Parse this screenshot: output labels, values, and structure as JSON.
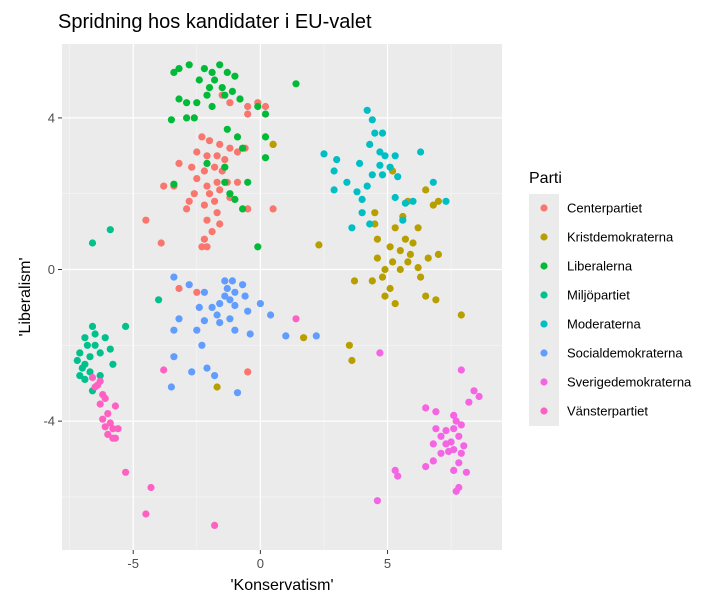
{
  "chart_data": {
    "type": "scatter",
    "title": "Spridning hos kandidater i EU-valet",
    "xlabel": "'Konservatism'",
    "ylabel": "'Liberalism'",
    "xlim": [
      -7.8,
      9.5
    ],
    "ylim": [
      -7.4,
      5.95
    ],
    "x_ticks": [
      -5,
      0,
      5
    ],
    "x_tick_labels": [
      "-5",
      "0",
      "5"
    ],
    "y_ticks": [
      -4,
      0,
      4
    ],
    "y_tick_labels": [
      "-4",
      "0",
      "4"
    ],
    "grid": true,
    "legend_placement": "right",
    "legend_title": "Parti",
    "series": [
      {
        "name": "Centerpartiet",
        "color": "#F8766D",
        "points": [
          [
            -1.5,
            4.6
          ],
          [
            -1.2,
            4.4
          ],
          [
            -0.8,
            4.5
          ],
          [
            -0.5,
            4.3
          ],
          [
            -0.1,
            4.4
          ],
          [
            0.2,
            4.3
          ],
          [
            -0.5,
            4.1
          ],
          [
            -2.3,
            3.5
          ],
          [
            -2.0,
            3.4
          ],
          [
            -1.6,
            3.3
          ],
          [
            -2.5,
            3.1
          ],
          [
            -2.1,
            3.0
          ],
          [
            -1.7,
            3.0
          ],
          [
            -1.4,
            2.9
          ],
          [
            -1.2,
            3.2
          ],
          [
            -0.9,
            3.1
          ],
          [
            -0.6,
            3.2
          ],
          [
            0.5,
            3.3
          ],
          [
            -3.2,
            2.8
          ],
          [
            -2.7,
            2.7
          ],
          [
            -2.2,
            2.6
          ],
          [
            -1.8,
            2.7
          ],
          [
            -1.5,
            2.6
          ],
          [
            -2.5,
            2.4
          ],
          [
            -2.1,
            2.2
          ],
          [
            -1.7,
            2.3
          ],
          [
            -1.3,
            2.3
          ],
          [
            -0.9,
            2.3
          ],
          [
            -3.8,
            2.2
          ],
          [
            -3.4,
            2.2
          ],
          [
            -2.6,
            2.0
          ],
          [
            -2.0,
            2.0
          ],
          [
            -1.6,
            2.1
          ],
          [
            -1.2,
            1.9
          ],
          [
            -2.8,
            1.8
          ],
          [
            -2.2,
            1.7
          ],
          [
            -1.8,
            1.8
          ],
          [
            -2.9,
            1.6
          ],
          [
            -0.5,
            1.6
          ],
          [
            0.5,
            1.6
          ],
          [
            -1.7,
            1.5
          ],
          [
            -2.1,
            1.3
          ],
          [
            -1.6,
            1.2
          ],
          [
            -4.5,
            1.3
          ],
          [
            -1.9,
            1.0
          ],
          [
            -2.2,
            0.8
          ],
          [
            -3.9,
            0.7
          ],
          [
            -2.3,
            0.6
          ],
          [
            -2.1,
            0.6
          ],
          [
            -3.2,
            -0.5
          ],
          [
            -2.5,
            -0.6
          ],
          [
            -0.5,
            -2.7
          ]
        ]
      },
      {
        "name": "Kristdemokraterna",
        "color": "#B79F00",
        "points": [
          [
            0.5,
            3.3
          ],
          [
            5.2,
            2.6
          ],
          [
            6.5,
            2.1
          ],
          [
            7.0,
            1.8
          ],
          [
            4.5,
            1.5
          ],
          [
            5.8,
            1.8
          ],
          [
            6.8,
            1.7
          ],
          [
            5.6,
            1.4
          ],
          [
            4.5,
            1.2
          ],
          [
            5.3,
            1.1
          ],
          [
            6.2,
            1.1
          ],
          [
            4.6,
            0.8
          ],
          [
            5.7,
            0.8
          ],
          [
            6.0,
            0.7
          ],
          [
            2.3,
            0.65
          ],
          [
            5.1,
            0.6
          ],
          [
            5.5,
            0.5
          ],
          [
            5.9,
            0.4
          ],
          [
            7.0,
            0.4
          ],
          [
            4.6,
            0.3
          ],
          [
            5.2,
            0.2
          ],
          [
            5.8,
            0.2
          ],
          [
            6.6,
            0.3
          ],
          [
            4.9,
            0.0
          ],
          [
            5.5,
            0.0
          ],
          [
            6.2,
            0.05
          ],
          [
            4.8,
            -0.2
          ],
          [
            6.3,
            -0.2
          ],
          [
            3.7,
            -0.3
          ],
          [
            4.4,
            -0.3
          ],
          [
            5.1,
            -0.5
          ],
          [
            4.9,
            -0.7
          ],
          [
            6.5,
            -0.7
          ],
          [
            6.9,
            -0.8
          ],
          [
            5.3,
            -0.9
          ],
          [
            7.9,
            -1.2
          ],
          [
            3.5,
            -2.0
          ],
          [
            3.6,
            -2.4
          ],
          [
            1.7,
            -1.8
          ],
          [
            -1.7,
            -3.1
          ]
        ]
      },
      {
        "name": "Liberalerna",
        "color": "#00BA38",
        "points": [
          [
            -3.4,
            5.2
          ],
          [
            -3.2,
            5.3
          ],
          [
            -2.8,
            5.4
          ],
          [
            -2.2,
            5.3
          ],
          [
            -1.9,
            5.2
          ],
          [
            -1.6,
            5.4
          ],
          [
            -1.3,
            5.2
          ],
          [
            -1.0,
            5.1
          ],
          [
            -2.4,
            5.0
          ],
          [
            -1.8,
            5.0
          ],
          [
            -2.0,
            4.8
          ],
          [
            -1.5,
            4.8
          ],
          [
            -1.1,
            4.7
          ],
          [
            -2.1,
            4.6
          ],
          [
            -1.4,
            4.6
          ],
          [
            -0.8,
            4.5
          ],
          [
            1.4,
            4.9
          ],
          [
            -3.2,
            4.5
          ],
          [
            -2.9,
            4.4
          ],
          [
            -2.5,
            4.4
          ],
          [
            -1.9,
            4.3
          ],
          [
            -0.1,
            4.3
          ],
          [
            -2.9,
            4.0
          ],
          [
            -2.6,
            4.0
          ],
          [
            0.2,
            4.1
          ],
          [
            -3.5,
            3.95
          ],
          [
            -1.3,
            3.7
          ],
          [
            -0.9,
            3.5
          ],
          [
            0.2,
            3.5
          ],
          [
            -0.7,
            3.2
          ],
          [
            0.2,
            2.95
          ],
          [
            -2.1,
            2.8
          ],
          [
            -1.4,
            2.7
          ],
          [
            -3.4,
            2.25
          ],
          [
            -1.4,
            2.3
          ],
          [
            -0.5,
            2.3
          ],
          [
            -1.0,
            1.85
          ],
          [
            -0.1,
            0.6
          ],
          [
            -0.7,
            1.6
          ],
          [
            -1.2,
            2.0
          ]
        ]
      },
      {
        "name": "Miljöpartiet",
        "color": "#00C08B",
        "points": [
          [
            -6.6,
            0.7
          ],
          [
            -5.9,
            1.05
          ],
          [
            -4.0,
            -0.8
          ],
          [
            -5.3,
            -1.5
          ],
          [
            -6.6,
            -1.5
          ],
          [
            -6.9,
            -1.8
          ],
          [
            -6.5,
            -1.7
          ],
          [
            -6.8,
            -2.0
          ],
          [
            -6.5,
            -2.0
          ],
          [
            -6.1,
            -1.8
          ],
          [
            -5.9,
            -2.1
          ],
          [
            -7.1,
            -2.2
          ],
          [
            -6.7,
            -2.3
          ],
          [
            -7.2,
            -2.4
          ],
          [
            -6.9,
            -2.5
          ],
          [
            -7.0,
            -2.6
          ],
          [
            -6.7,
            -2.7
          ],
          [
            -7.1,
            -2.8
          ],
          [
            -6.9,
            -2.9
          ],
          [
            -6.3,
            -2.8
          ],
          [
            -5.8,
            -2.5
          ],
          [
            -6.3,
            -2.2
          ],
          [
            -6.6,
            -3.2
          ]
        ]
      },
      {
        "name": "Moderaterna",
        "color": "#00BFC4",
        "points": [
          [
            4.2,
            4.2
          ],
          [
            4.4,
            3.95
          ],
          [
            4.5,
            3.6
          ],
          [
            4.8,
            3.6
          ],
          [
            4.3,
            3.3
          ],
          [
            4.7,
            3.1
          ],
          [
            4.9,
            3.0
          ],
          [
            5.3,
            3.0
          ],
          [
            6.3,
            3.1
          ],
          [
            2.5,
            3.05
          ],
          [
            3.0,
            2.9
          ],
          [
            3.9,
            2.8
          ],
          [
            4.7,
            2.75
          ],
          [
            5.1,
            2.7
          ],
          [
            4.4,
            2.5
          ],
          [
            4.8,
            2.5
          ],
          [
            5.4,
            2.45
          ],
          [
            2.9,
            2.6
          ],
          [
            4.2,
            2.2
          ],
          [
            3.8,
            2.05
          ],
          [
            3.4,
            2.3
          ],
          [
            4.0,
            1.85
          ],
          [
            5.3,
            1.9
          ],
          [
            5.7,
            1.75
          ],
          [
            6.0,
            1.8
          ],
          [
            6.8,
            2.3
          ],
          [
            7.3,
            1.8
          ],
          [
            2.9,
            2.1
          ],
          [
            4.0,
            1.5
          ],
          [
            3.6,
            1.1
          ],
          [
            4.3,
            1.2
          ],
          [
            5.6,
            1.3
          ]
        ]
      },
      {
        "name": "Socialdemokraterna",
        "color": "#619CFF",
        "points": [
          [
            -3.4,
            -0.2
          ],
          [
            -2.8,
            -0.4
          ],
          [
            -1.4,
            -0.3
          ],
          [
            -1.1,
            -0.3
          ],
          [
            -0.7,
            -0.4
          ],
          [
            -2.2,
            -0.6
          ],
          [
            -1.3,
            -0.5
          ],
          [
            -1.0,
            -0.6
          ],
          [
            -1.4,
            -0.7
          ],
          [
            -1.2,
            -0.8
          ],
          [
            -0.6,
            -0.7
          ],
          [
            -1.6,
            -0.9
          ],
          [
            -1.0,
            -0.95
          ],
          [
            0.0,
            -0.9
          ],
          [
            -2.4,
            -1.0
          ],
          [
            -1.9,
            -1.0
          ],
          [
            -0.5,
            -1.1
          ],
          [
            -1.7,
            -1.2
          ],
          [
            -1.2,
            -1.3
          ],
          [
            -2.2,
            -1.35
          ],
          [
            0.4,
            -1.2
          ],
          [
            -3.2,
            -1.3
          ],
          [
            -1.6,
            -1.4
          ],
          [
            -3.4,
            -1.6
          ],
          [
            -2.5,
            -1.6
          ],
          [
            -1.0,
            -1.6
          ],
          [
            -0.4,
            -1.7
          ],
          [
            -2.3,
            -2.0
          ],
          [
            -3.4,
            -2.3
          ],
          [
            -2.1,
            -2.6
          ],
          [
            -2.7,
            -2.7
          ],
          [
            -1.8,
            -2.8
          ],
          [
            -3.5,
            -3.1
          ],
          [
            -0.9,
            -3.25
          ],
          [
            1.0,
            -1.75
          ],
          [
            2.2,
            -1.75
          ]
        ]
      },
      {
        "name": "Sverigedemokraterna",
        "color": "#F564E3",
        "points": [
          [
            4.7,
            -2.2
          ],
          [
            7.9,
            -2.65
          ],
          [
            8.4,
            -3.2
          ],
          [
            8.6,
            -3.35
          ],
          [
            8.2,
            -3.5
          ],
          [
            6.5,
            -3.65
          ],
          [
            6.9,
            -3.75
          ],
          [
            7.6,
            -3.85
          ],
          [
            7.7,
            -4.0
          ],
          [
            7.9,
            -4.1
          ],
          [
            7.6,
            -4.2
          ],
          [
            7.3,
            -4.25
          ],
          [
            6.9,
            -4.2
          ],
          [
            7.1,
            -4.4
          ],
          [
            7.8,
            -4.4
          ],
          [
            7.5,
            -4.55
          ],
          [
            7.3,
            -4.6
          ],
          [
            6.8,
            -4.6
          ],
          [
            8.0,
            -4.65
          ],
          [
            7.6,
            -4.75
          ],
          [
            7.4,
            -4.8
          ],
          [
            7.1,
            -4.85
          ],
          [
            7.9,
            -4.85
          ],
          [
            6.8,
            -5.05
          ],
          [
            7.8,
            -5.1
          ],
          [
            6.5,
            -5.2
          ],
          [
            5.3,
            -5.3
          ],
          [
            5.4,
            -5.45
          ],
          [
            7.6,
            -5.3
          ],
          [
            8.1,
            -5.35
          ],
          [
            7.8,
            -5.75
          ],
          [
            7.7,
            -5.85
          ],
          [
            4.6,
            -6.1
          ]
        ]
      },
      {
        "name": "Vänsterpartiet",
        "color": "#FF61C3",
        "points": [
          [
            1.4,
            -1.3
          ],
          [
            -3.8,
            -2.65
          ],
          [
            -6.6,
            -2.85
          ],
          [
            -6.3,
            -2.95
          ],
          [
            -6.4,
            -3.05
          ],
          [
            -6.5,
            -3.1
          ],
          [
            -6.2,
            -3.3
          ],
          [
            -6.1,
            -3.4
          ],
          [
            -6.3,
            -3.55
          ],
          [
            -5.7,
            -3.6
          ],
          [
            -6.0,
            -3.8
          ],
          [
            -6.2,
            -3.95
          ],
          [
            -5.9,
            -4.05
          ],
          [
            -6.1,
            -4.15
          ],
          [
            -5.8,
            -4.2
          ],
          [
            -5.6,
            -4.2
          ],
          [
            -6.0,
            -4.35
          ],
          [
            -5.7,
            -4.45
          ],
          [
            -5.8,
            -4.45
          ],
          [
            -5.3,
            -5.35
          ],
          [
            -4.3,
            -5.75
          ],
          [
            -4.5,
            -6.45
          ],
          [
            -1.8,
            -6.75
          ]
        ]
      }
    ]
  }
}
